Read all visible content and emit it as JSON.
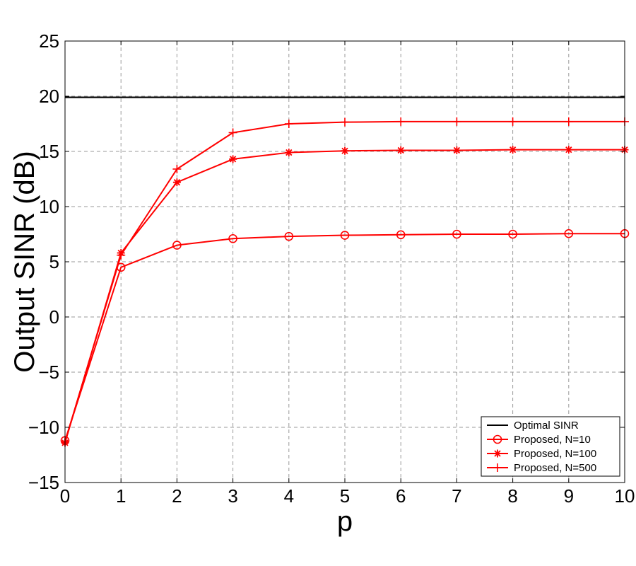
{
  "chart_data": {
    "type": "line",
    "xlabel": "p",
    "ylabel": "Output SINR (dB)",
    "xlim": [
      0,
      10
    ],
    "ylim": [
      -15,
      25
    ],
    "xticks": [
      0,
      1,
      2,
      3,
      4,
      5,
      6,
      7,
      8,
      9,
      10
    ],
    "yticks": [
      -15,
      -10,
      -5,
      0,
      5,
      10,
      15,
      20,
      25
    ],
    "ytick_labels": [
      "−15",
      "−10",
      "−5",
      "0",
      "5",
      "10",
      "15",
      "20",
      "25"
    ],
    "grid": true,
    "legend_position": "bottom-right",
    "x": [
      0,
      1,
      2,
      3,
      4,
      5,
      6,
      7,
      8,
      9,
      10
    ],
    "series": [
      {
        "name": "Optimal SINR",
        "color": "#000000",
        "marker": "none",
        "values": [
          19.9,
          19.9,
          19.9,
          19.9,
          19.9,
          19.9,
          19.9,
          19.9,
          19.9,
          19.9,
          19.9
        ]
      },
      {
        "name": "Proposed, N=10",
        "color": "#ff0000",
        "marker": "circle",
        "values": [
          -11.2,
          4.5,
          6.5,
          7.1,
          7.3,
          7.4,
          7.45,
          7.5,
          7.5,
          7.55,
          7.55
        ]
      },
      {
        "name": "Proposed, N=100",
        "color": "#ff0000",
        "marker": "asterisk",
        "values": [
          -11.4,
          5.8,
          12.2,
          14.3,
          14.9,
          15.05,
          15.1,
          15.1,
          15.15,
          15.15,
          15.15
        ]
      },
      {
        "name": "Proposed, N=500",
        "color": "#ff0000",
        "marker": "plus",
        "values": [
          -11.3,
          5.6,
          13.4,
          16.7,
          17.5,
          17.65,
          17.7,
          17.7,
          17.7,
          17.7,
          17.7
        ]
      }
    ]
  }
}
